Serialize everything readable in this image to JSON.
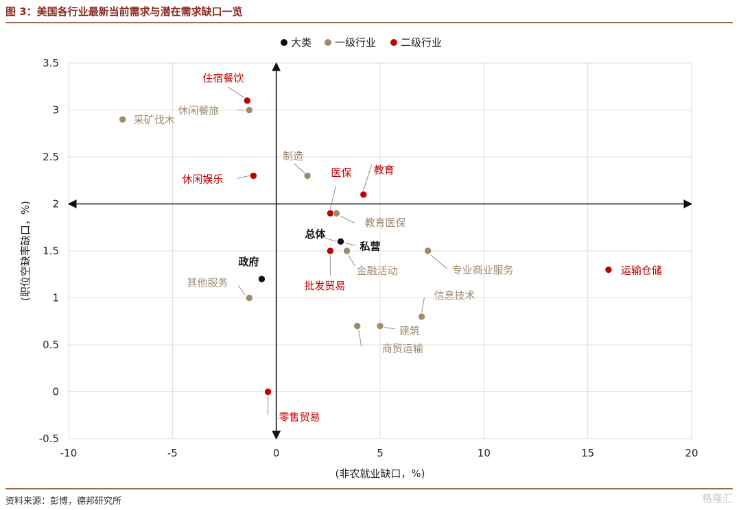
{
  "header": {
    "title": "图 3：美国各行业最新当前需求与潜在需求缺口一览"
  },
  "footer": {
    "source": "资料来源：彭博，德邦研究所",
    "watermark": "格隆汇"
  },
  "colors": {
    "大类": "#111111",
    "一级行业": "#a08a6e",
    "二级行业": "#c00000",
    "grid": "#dcdcdc",
    "axis": "#111111",
    "leader": "#8c8c8c",
    "rule": "#a06a55"
  },
  "chart_data": {
    "type": "scatter",
    "xlabel": "(非农就业缺口，%)",
    "ylabel": "(职位空缺率缺口，%)",
    "xlim": [
      -10,
      20
    ],
    "ylim": [
      -0.5,
      3.5
    ],
    "xticks": [
      -10,
      -5,
      0,
      5,
      10,
      15,
      20
    ],
    "yticks": [
      -0.5,
      0,
      0.5,
      1,
      1.5,
      2,
      2.5,
      3,
      3.5
    ],
    "xtick_labels": [
      "-10",
      "-5",
      "0",
      "5",
      "10",
      "15",
      "20"
    ],
    "ytick_labels": [
      "-0.5",
      "0",
      "0.5",
      "1",
      "1.5",
      "2",
      "2.5",
      "3",
      "3.5"
    ],
    "grid": true,
    "quadrant_axes": {
      "x_at": 0,
      "y_at": 2
    },
    "legend": {
      "position": "top-center",
      "entries": [
        "大类",
        "一级行业",
        "二级行业"
      ]
    },
    "points": [
      {
        "name": "总体",
        "group": "大类",
        "x": 3.1,
        "y": 1.6
      },
      {
        "name": "私营",
        "group": "大类",
        "x": 3.1,
        "y": 1.6
      },
      {
        "name": "政府",
        "group": "大类",
        "x": -0.7,
        "y": 1.2
      },
      {
        "name": "休闲餐旅",
        "group": "一级行业",
        "x": -1.3,
        "y": 3.0
      },
      {
        "name": "采矿伐木",
        "group": "一级行业",
        "x": -7.4,
        "y": 2.9
      },
      {
        "name": "制造",
        "group": "一级行业",
        "x": 1.5,
        "y": 2.3
      },
      {
        "name": "教育医保",
        "group": "一级行业",
        "x": 2.9,
        "y": 1.9
      },
      {
        "name": "金融活动",
        "group": "一级行业",
        "x": 3.4,
        "y": 1.5
      },
      {
        "name": "专业商业服务",
        "group": "一级行业",
        "x": 7.3,
        "y": 1.5
      },
      {
        "name": "其他服务",
        "group": "一级行业",
        "x": -1.3,
        "y": 1.0
      },
      {
        "name": "信息技术",
        "group": "一级行业",
        "x": 7.0,
        "y": 0.8
      },
      {
        "name": "建筑",
        "group": "一级行业",
        "x": 5.0,
        "y": 0.7
      },
      {
        "name": "商贸运输",
        "group": "一级行业",
        "x": 3.9,
        "y": 0.7
      },
      {
        "name": "住宿餐饮",
        "group": "二级行业",
        "x": -1.4,
        "y": 3.1
      },
      {
        "name": "休闲娱乐",
        "group": "二级行业",
        "x": -1.1,
        "y": 2.3
      },
      {
        "name": "医保",
        "group": "二级行业",
        "x": 2.6,
        "y": 1.9
      },
      {
        "name": "教育",
        "group": "二级行业",
        "x": 4.2,
        "y": 2.1
      },
      {
        "name": "批发贸易",
        "group": "二级行业",
        "x": 2.6,
        "y": 1.5
      },
      {
        "name": "运输仓储",
        "group": "二级行业",
        "x": 16.0,
        "y": 1.3
      },
      {
        "name": "零售贸易",
        "group": "二级行业",
        "x": -0.4,
        "y": 0.0
      }
    ]
  }
}
